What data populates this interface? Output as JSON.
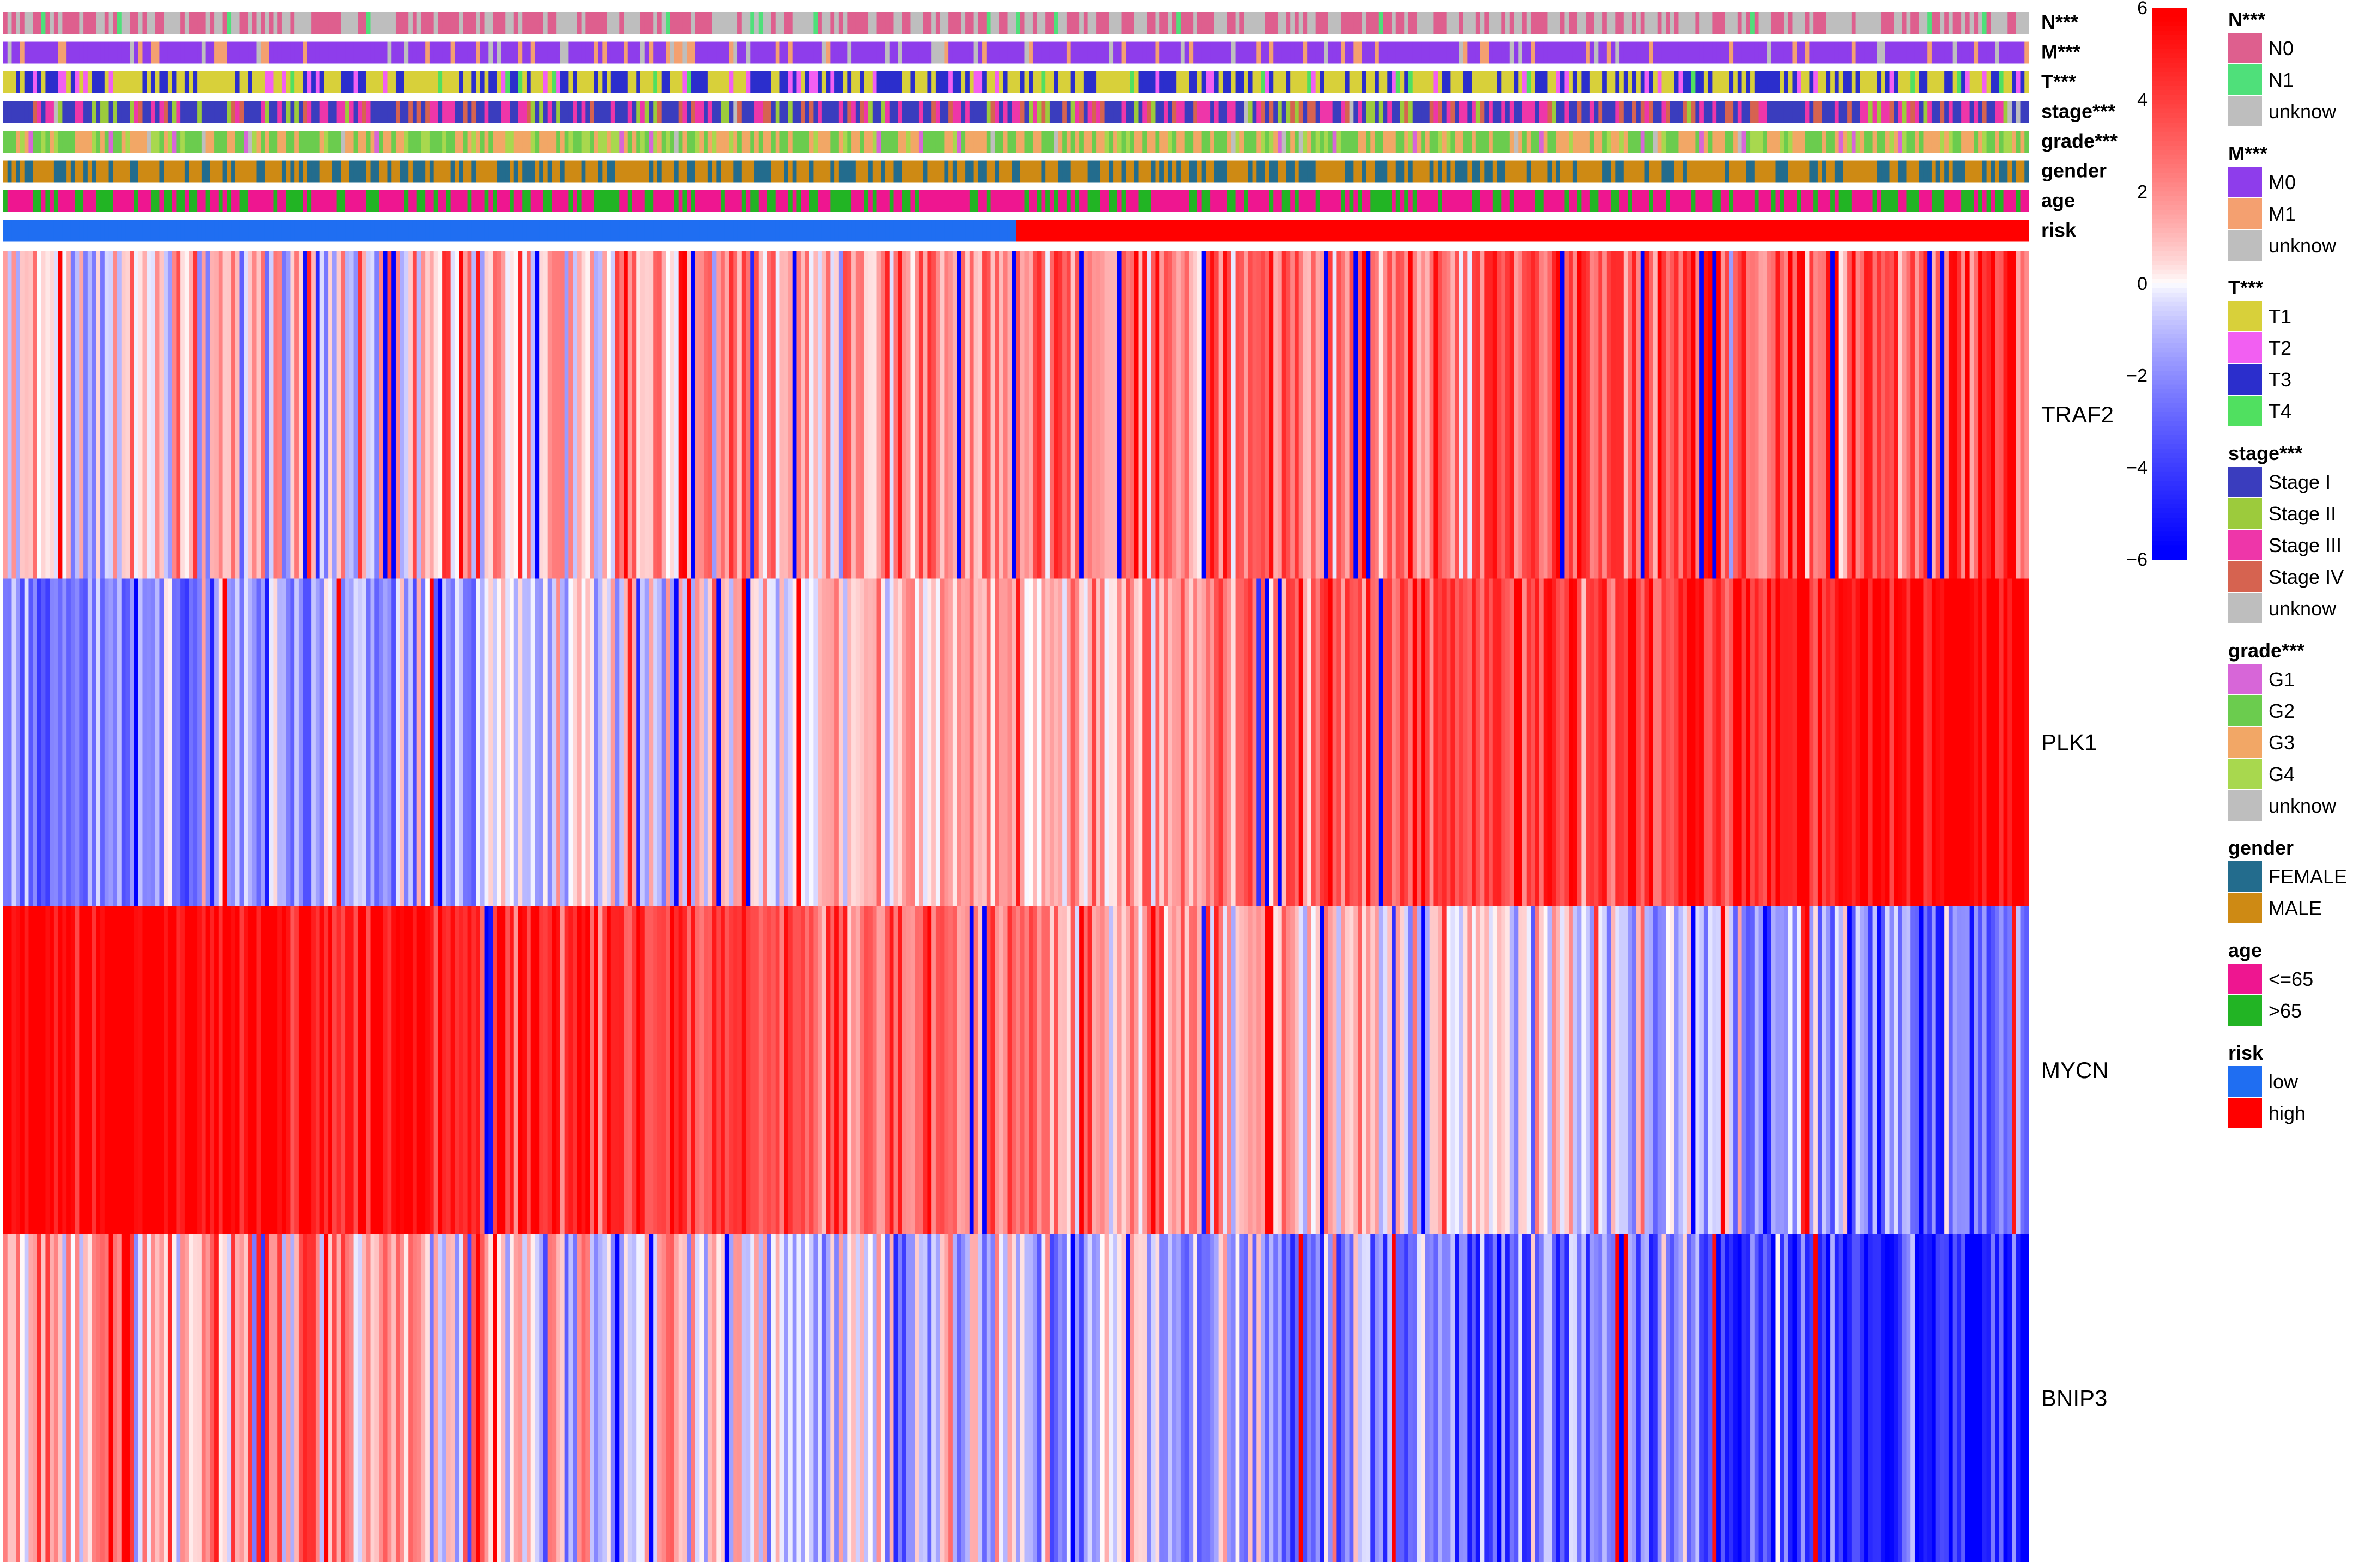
{
  "chart_data": {
    "type": "heatmap",
    "title": "",
    "n_samples": 480,
    "sample_order": "sorted by risk score (low to high)",
    "annotation_tracks": [
      {
        "key": "N",
        "label": "N***",
        "legend_title": "N***",
        "levels": [
          {
            "name": "N0",
            "color": "#DE5F8E",
            "weight": 0.45
          },
          {
            "name": "N1",
            "color": "#4FE07A",
            "weight": 0.04
          },
          {
            "name": "unknow",
            "color": "#BEBEBE",
            "weight": 0.51
          }
        ]
      },
      {
        "key": "M",
        "label": "M***",
        "legend_title": "M***",
        "levels": [
          {
            "name": "M0",
            "color": "#8E3DEB",
            "weight": 0.8
          },
          {
            "name": "M1",
            "color": "#F4A070",
            "weight": 0.12
          },
          {
            "name": "unknow",
            "color": "#BEBEBE",
            "weight": 0.08
          }
        ]
      },
      {
        "key": "T",
        "label": "T***",
        "legend_title": "T***",
        "levels": [
          {
            "name": "T1",
            "color": "#D8D03A",
            "weight": 0.5
          },
          {
            "name": "T2",
            "color": "#F25FF2",
            "weight": 0.12
          },
          {
            "name": "T3",
            "color": "#2B2ECC",
            "weight": 0.34
          },
          {
            "name": "T4",
            "color": "#50E060",
            "weight": 0.04
          }
        ]
      },
      {
        "key": "stage",
        "label": "stage***",
        "legend_title": "stage***",
        "levels": [
          {
            "name": "Stage I",
            "color": "#3A3DBE",
            "weight": 0.48
          },
          {
            "name": "Stage II",
            "color": "#9CCB3C",
            "weight": 0.1
          },
          {
            "name": "Stage III",
            "color": "#EE36A9",
            "weight": 0.25
          },
          {
            "name": "Stage IV",
            "color": "#D66350",
            "weight": 0.15
          },
          {
            "name": "unknow",
            "color": "#BEBEBE",
            "weight": 0.02
          }
        ]
      },
      {
        "key": "grade",
        "label": "grade***",
        "legend_title": "grade***",
        "levels": [
          {
            "name": "G1",
            "color": "#D766D8",
            "weight": 0.03
          },
          {
            "name": "G2",
            "color": "#6BCC4E",
            "weight": 0.42
          },
          {
            "name": "G3",
            "color": "#F2A766",
            "weight": 0.38
          },
          {
            "name": "G4",
            "color": "#A8D84E",
            "weight": 0.14
          },
          {
            "name": "unknow",
            "color": "#BEBEBE",
            "weight": 0.03
          }
        ]
      },
      {
        "key": "gender",
        "label": "gender",
        "legend_title": "gender",
        "levels": [
          {
            "name": "FEMALE",
            "color": "#236C8D",
            "weight": 0.35
          },
          {
            "name": "MALE",
            "color": "#CE8A14",
            "weight": 0.65
          }
        ]
      },
      {
        "key": "age",
        "label": "age",
        "legend_title": "age",
        "levels": [
          {
            "name": "<=65",
            "color": "#EE1690",
            "weight": 0.68
          },
          {
            "name": ">65",
            "color": "#22B424",
            "weight": 0.32
          }
        ]
      },
      {
        "key": "risk",
        "label": "risk",
        "legend_title": "risk",
        "levels": [
          {
            "name": "low",
            "color": "#1F6EF2",
            "weight": 0.5
          },
          {
            "name": "high",
            "color": "#FF0000",
            "weight": 0.5
          }
        ]
      }
    ],
    "genes": [
      {
        "name": "TRAF2",
        "start": 0.3,
        "end": 3.0,
        "spread": 2.0
      },
      {
        "name": "PLK1",
        "start": -1.8,
        "end": 4.5,
        "spread": 1.5
      },
      {
        "name": "MYCN",
        "start": 5.0,
        "end": -2.2,
        "spread": 1.6
      },
      {
        "name": "BNIP3",
        "start": 1.6,
        "end": -3.2,
        "spread": 2.2
      }
    ],
    "color_scale": {
      "min": -6,
      "max": 6,
      "ticks": [
        "6",
        "4",
        "2",
        "0",
        "−2",
        "−4",
        "−6"
      ],
      "low_color": "#0000FF",
      "mid_color": "#FFFFFF",
      "high_color": "#FF0000"
    }
  }
}
